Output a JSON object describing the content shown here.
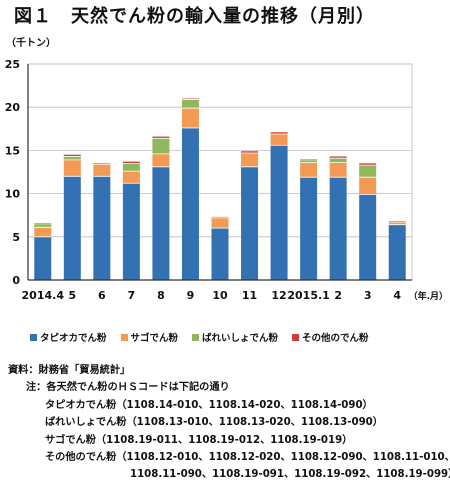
{
  "title": "図１　天然でん粉の輸入量の推移（月別）",
  "chart_data": {
    "type": "bar",
    "stacked": true,
    "ylabel": "（千トン）",
    "xlabel": "（年.月）",
    "ylim": [
      0,
      25
    ],
    "yticks": [
      0,
      5,
      10,
      15,
      20,
      25
    ],
    "grid": true,
    "legend_position": "bottom",
    "categories": [
      "2014.4",
      "5",
      "6",
      "7",
      "8",
      "9",
      "10",
      "11",
      "12",
      "2015.1",
      "2",
      "3",
      "4"
    ],
    "series": [
      {
        "name": "タピオカでん粉",
        "color": "#3471B3",
        "values": [
          5.0,
          12.0,
          12.0,
          11.2,
          13.1,
          17.6,
          6.0,
          13.1,
          15.6,
          11.9,
          11.9,
          9.9,
          6.4
        ]
      },
      {
        "name": "サゴでん粉",
        "color": "#F39A55",
        "values": [
          1.1,
          1.9,
          1.4,
          1.4,
          1.5,
          2.3,
          1.2,
          1.6,
          1.3,
          1.7,
          1.7,
          2.0,
          0.3
        ]
      },
      {
        "name": "ばれいしょでん粉",
        "color": "#8EB85C",
        "values": [
          0.4,
          0.4,
          0.0,
          0.9,
          1.8,
          1.0,
          0.0,
          0.0,
          0.0,
          0.3,
          0.5,
          1.4,
          0.0
        ]
      },
      {
        "name": "その他のでん粉",
        "color": "#D23C3C",
        "values": [
          0.1,
          0.2,
          0.1,
          0.2,
          0.2,
          0.1,
          0.1,
          0.2,
          0.2,
          0.1,
          0.2,
          0.2,
          0.1
        ]
      }
    ]
  },
  "notes": {
    "source": "資料：財務省「貿易統計」",
    "note_intro": "注：各天然でん粉のＨＳコードは下記の通り",
    "tapioca": "タピオカでん粉（1108.14-010、1108.14-020、1108.14-090）",
    "potato": "ばれいしょでん粉（1108.13-010、1108.13-020、1108.13-090）",
    "sago": "サゴでん粉（1108.19-011、1108.19-012、1108.19-019）",
    "other_line1": "その他のでん粉（1108.12-010、1108.12-020、1108.12-090、1108.11-010、",
    "other_line2": "1108.11-090、1108.19-091、1108.19-092、1108.19-099）"
  }
}
